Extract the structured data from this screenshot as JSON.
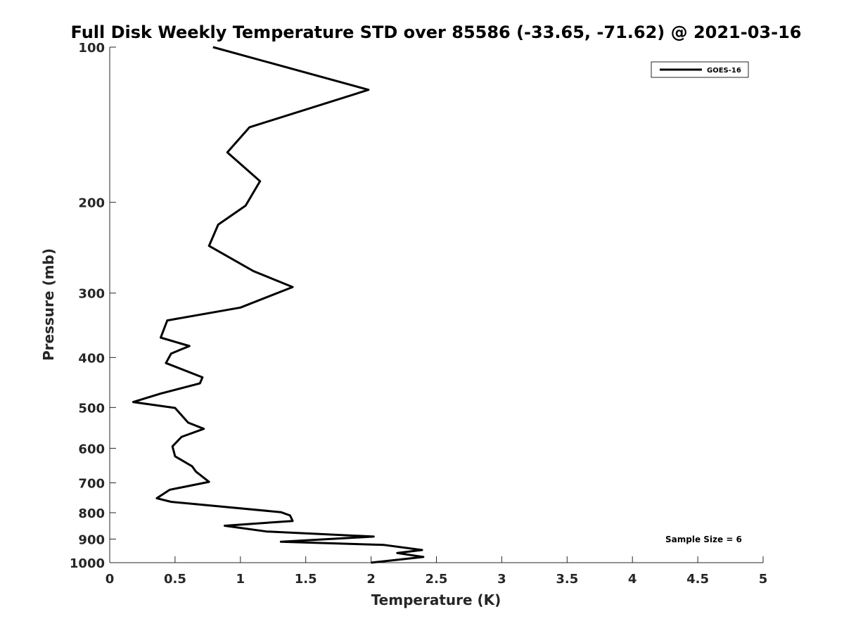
{
  "chart_data": {
    "type": "line",
    "title": "Full Disk Weekly Temperature STD over 85586 (-33.65, -71.62) @ 2021-03-16",
    "xlabel": "Temperature (K)",
    "ylabel": "Pressure (mb)",
    "xlim": [
      0,
      5
    ],
    "ylim": [
      100,
      1000
    ],
    "y_scale": "log",
    "y_reversed": true,
    "grid": false,
    "legend_position": "top-right",
    "x_ticks": [
      "0",
      "0.5",
      "1",
      "1.5",
      "2",
      "2.5",
      "3",
      "3.5",
      "4",
      "4.5",
      "5"
    ],
    "y_ticks": [
      "100",
      "200",
      "300",
      "400",
      "500",
      "600",
      "700",
      "800",
      "900",
      "1000"
    ],
    "series": [
      {
        "name": "GOES-16",
        "color": "#000000",
        "x": [
          0.79,
          1.98,
          1.07,
          0.9,
          1.15,
          1.04,
          0.83,
          0.76,
          1.1,
          1.4,
          1.0,
          0.44,
          0.39,
          0.61,
          0.47,
          0.43,
          0.71,
          0.69,
          0.39,
          0.18,
          0.5,
          0.6,
          0.72,
          0.55,
          0.48,
          0.5,
          0.63,
          0.66,
          0.76,
          0.46,
          0.36,
          0.47,
          1.31,
          1.38,
          1.4,
          0.88,
          1.2,
          2.02,
          1.31,
          2.1,
          2.39,
          2.2,
          2.4,
          2.0
        ],
        "y": [
          100,
          121,
          143,
          160,
          182,
          203,
          221,
          243,
          272,
          292,
          320,
          339,
          366,
          380,
          393,
          410,
          437,
          449,
          470,
          488,
          501,
          535,
          550,
          570,
          595,
          622,
          650,
          666,
          697,
          722,
          750,
          762,
          798,
          810,
          830,
          848,
          870,
          890,
          911,
          924,
          945,
          958,
          975,
          1000
        ]
      }
    ],
    "annotations": [
      "Sample Size = 6"
    ]
  }
}
